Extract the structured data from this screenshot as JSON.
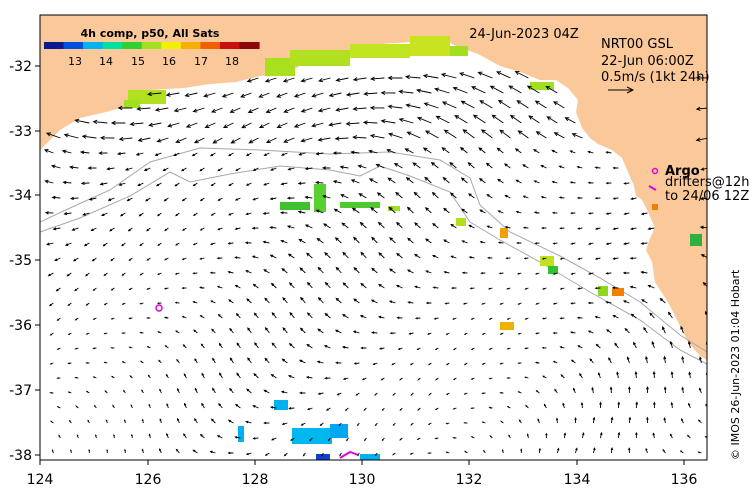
{
  "title": {
    "date": "24-Jun-2023 04Z",
    "model": "NRT00 GSL",
    "analysis_time": "22-Jun 06:00Z",
    "scale_label": "0.5m/s (1kt 24h)"
  },
  "colorbar": {
    "title": "4h comp, p50, All Sats",
    "ticks": [
      "13",
      "14",
      "15",
      "16",
      "17",
      "18"
    ],
    "colors": [
      "#0a1a8c",
      "#0050e0",
      "#00b4f0",
      "#00e0a0",
      "#30d030",
      "#a0e020",
      "#f0f000",
      "#f8b000",
      "#f06000",
      "#c81010",
      "#8c0808"
    ]
  },
  "legend": {
    "argo_label": "Argo",
    "drifters_label": "drifters@12h",
    "drifters_range": "to 24/06 12Z"
  },
  "credit": "© IMOS 26-Jun-2023 01:04 Hobart",
  "axes": {
    "x_ticks": [
      "124",
      "126",
      "128",
      "130",
      "132",
      "134",
      "136"
    ],
    "y_ticks": [
      "-32",
      "-33",
      "-34",
      "-35",
      "-36",
      "-37",
      "-38"
    ]
  },
  "colors": {
    "land": "#fbc899",
    "sea": "#ffffff",
    "bathymetry": "#a8a8a8",
    "arrow": "#000000",
    "argo": "#e000e0"
  }
}
